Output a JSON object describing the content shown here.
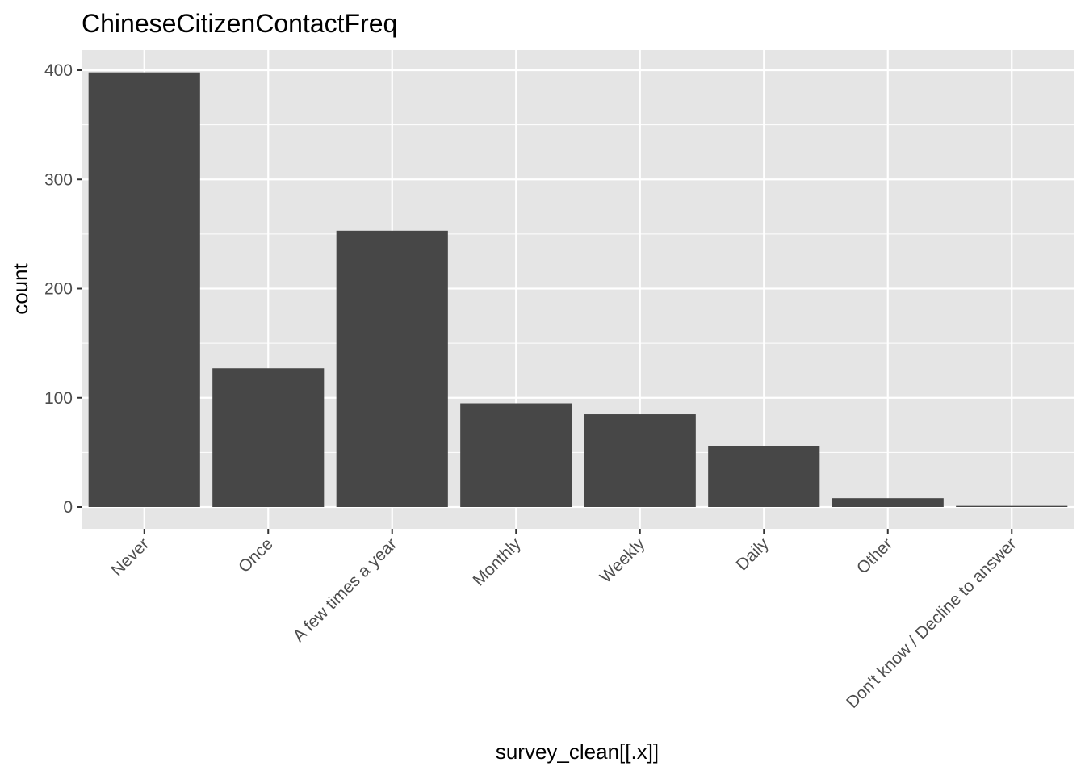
{
  "chart_data": {
    "type": "bar",
    "title": "ChineseCitizenContactFreq",
    "xlabel": "survey_clean[[.x]]",
    "ylabel": "count",
    "categories": [
      "Never",
      "Once",
      "A few times a year",
      "Monthly",
      "Weekly",
      "Daily",
      "Other",
      "Don't know / Decline to answer"
    ],
    "values": [
      398,
      127,
      253,
      95,
      85,
      56,
      8,
      1
    ],
    "ylim": [
      0,
      420
    ],
    "yticks": [
      0,
      100,
      200,
      300,
      400
    ],
    "grid": true,
    "colors": {
      "panel": "#e5e5e5",
      "grid": "#ffffff",
      "bar": "#474747",
      "tick_text": "#4d4d4d",
      "tick_mark": "#333333"
    }
  }
}
